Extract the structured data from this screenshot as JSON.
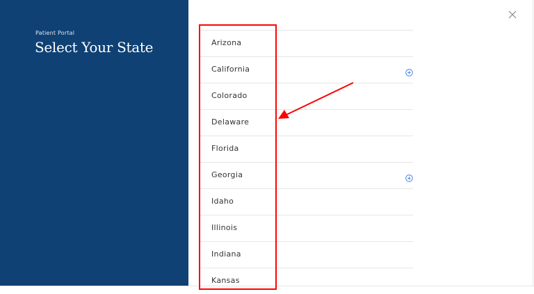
{
  "sidebar": {
    "eyebrow": "Patient Portal",
    "title": "Select Your State",
    "bg_color": "#0f4174"
  },
  "close_icon": "close-x-icon",
  "states": [
    {
      "label": "Arizona",
      "expandable": false
    },
    {
      "label": "California",
      "expandable": true
    },
    {
      "label": "Colorado",
      "expandable": false
    },
    {
      "label": "Delaware",
      "expandable": false
    },
    {
      "label": "Florida",
      "expandable": false
    },
    {
      "label": "Georgia",
      "expandable": true
    },
    {
      "label": "Idaho",
      "expandable": false
    },
    {
      "label": "Illinois",
      "expandable": false
    },
    {
      "label": "Indiana",
      "expandable": false
    },
    {
      "label": "Kansas",
      "expandable": false
    }
  ],
  "annotation": {
    "color": "#ff0000"
  },
  "accent_color": "#4a86e8"
}
